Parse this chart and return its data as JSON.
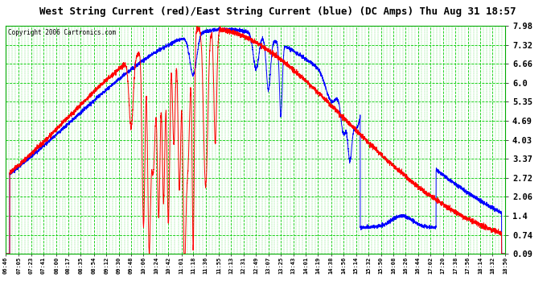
{
  "title": "West String Current (red)/East String Current (blue) (DC Amps) Thu Aug 31 18:57",
  "copyright": "Copyright 2006 Cartronics.com",
  "ylabel_values": [
    7.98,
    7.32,
    6.66,
    6.0,
    5.35,
    4.69,
    4.03,
    3.37,
    2.72,
    2.06,
    1.4,
    0.74,
    0.09
  ],
  "ymin": 0.09,
  "ymax": 7.98,
  "plot_bg_color": "#FFFFFF",
  "grid_color": "#00CC00",
  "line_color_red": "#FF0000",
  "line_color_blue": "#0000FF",
  "title_bg": "#FFFFFF",
  "x_tick_labels": [
    "06:46",
    "07:05",
    "07:23",
    "07:41",
    "08:00",
    "08:17",
    "08:35",
    "08:54",
    "09:12",
    "09:30",
    "09:48",
    "10:06",
    "10:24",
    "10:42",
    "11:01",
    "11:18",
    "11:36",
    "11:55",
    "12:13",
    "12:31",
    "12:49",
    "13:07",
    "13:25",
    "13:43",
    "14:01",
    "14:19",
    "14:38",
    "14:56",
    "15:14",
    "15:32",
    "15:50",
    "16:08",
    "16:26",
    "16:44",
    "17:02",
    "17:20",
    "17:38",
    "17:56",
    "18:14",
    "18:32",
    "18:50"
  ]
}
